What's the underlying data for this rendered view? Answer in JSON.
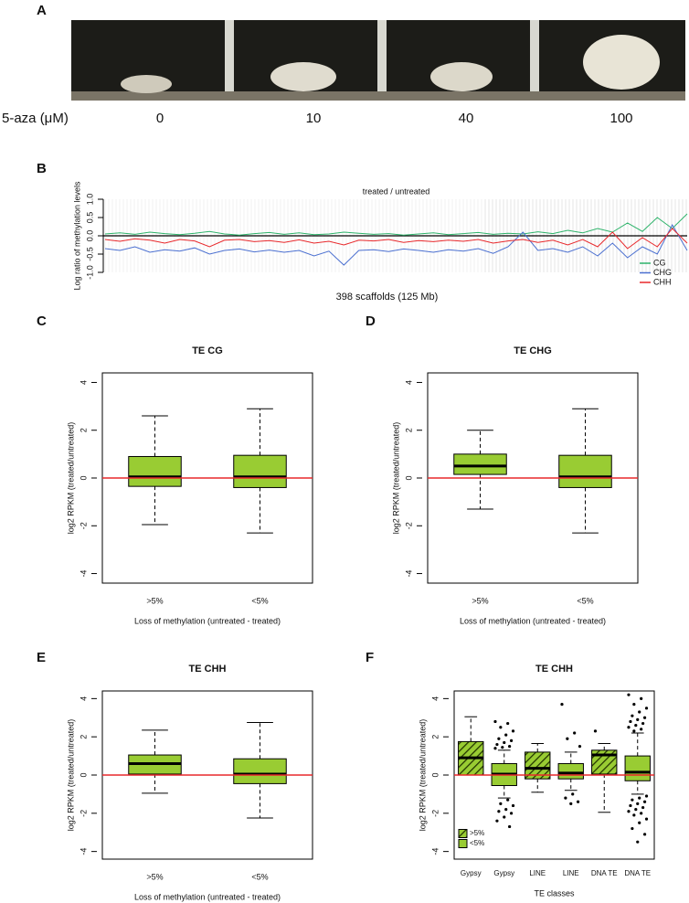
{
  "figure_a": {
    "panel": "A",
    "treatment_label": "5-aza (μM)",
    "doses": [
      0,
      10,
      40,
      100
    ]
  },
  "chart_data": [
    {
      "type": "line",
      "panel": "B",
      "title": "treated / untreated",
      "y_label": "Log ratio of methylation levels",
      "x_label": "398 scaffolds (125 Mb)",
      "ylim": [
        -1,
        1
      ],
      "yticks": [
        {
          "value": -1,
          "label": "-1.0"
        },
        {
          "value": -0.5,
          "label": "-0.5"
        },
        {
          "value": 0,
          "label": "0.0"
        },
        {
          "value": 0.5,
          "label": "0.5"
        },
        {
          "value": 1,
          "label": "1.0"
        }
      ],
      "hline": 0,
      "hline_color": "#000000",
      "legend": "bottom-right",
      "categories": [
        null,
        null,
        null,
        null,
        null,
        null,
        null,
        null,
        null,
        null,
        null,
        null,
        null,
        null,
        null,
        null,
        null,
        null,
        null,
        null,
        null,
        null,
        null,
        null,
        null,
        null,
        null,
        null,
        null,
        null,
        null,
        null,
        null,
        null,
        null,
        null,
        null,
        null,
        null,
        null
      ],
      "series": [
        {
          "name": "CG",
          "color": "#2db36a",
          "values": [
            0.05,
            0.08,
            0.04,
            0.1,
            0.06,
            0.03,
            0.07,
            0.12,
            0.05,
            0.02,
            0.06,
            0.09,
            0.04,
            0.08,
            0.03,
            0.05,
            0.1,
            0.07,
            0.04,
            0.06,
            0.02,
            0.05,
            0.08,
            0.03,
            0.06,
            0.09,
            0.04,
            0.07,
            0.05,
            0.11,
            0.06,
            0.15,
            0.08,
            0.2,
            0.1,
            0.35,
            0.12,
            0.5,
            0.2,
            0.6
          ]
        },
        {
          "name": "CHG",
          "color": "#4a6fd0",
          "values": [
            -0.35,
            -0.4,
            -0.3,
            -0.45,
            -0.38,
            -0.42,
            -0.33,
            -0.5,
            -0.4,
            -0.36,
            -0.44,
            -0.39,
            -0.45,
            -0.4,
            -0.55,
            -0.42,
            -0.8,
            -0.4,
            -0.38,
            -0.43,
            -0.36,
            -0.4,
            -0.45,
            -0.38,
            -0.42,
            -0.35,
            -0.48,
            -0.3,
            0.1,
            -0.4,
            -0.35,
            -0.45,
            -0.3,
            -0.55,
            -0.2,
            -0.6,
            -0.3,
            -0.5,
            0.3,
            -0.4
          ]
        },
        {
          "name": "CHH",
          "color": "#e8282b",
          "values": [
            -0.1,
            -0.15,
            -0.08,
            -0.12,
            -0.2,
            -0.1,
            -0.14,
            -0.3,
            -0.12,
            -0.1,
            -0.16,
            -0.13,
            -0.18,
            -0.11,
            -0.2,
            -0.15,
            -0.25,
            -0.12,
            -0.14,
            -0.1,
            -0.18,
            -0.13,
            -0.16,
            -0.12,
            -0.15,
            -0.1,
            -0.2,
            -0.14,
            -0.1,
            -0.18,
            -0.12,
            -0.25,
            -0.1,
            -0.3,
            0.1,
            -0.35,
            -0.05,
            -0.3,
            0.2,
            -0.2
          ]
        }
      ]
    },
    {
      "type": "box",
      "panel": "C",
      "title": "TE CG",
      "y_label": "log2 RPKM (treated/untreated)",
      "x_label": "Loss of methylation (untreated - treated)",
      "color": "#99cc33",
      "ylim": [
        -4.4,
        4.4
      ],
      "yticks": [
        -4,
        -2,
        0,
        2,
        4
      ],
      "hline": 0,
      "hline_color": "#e8282b",
      "categories": [
        ">5%",
        "<5%"
      ],
      "boxes": [
        {
          "low": -1.95,
          "q1": -0.35,
          "median": 0.05,
          "q3": 0.9,
          "high": 2.6
        },
        {
          "low": -2.3,
          "q1": -0.4,
          "median": 0.05,
          "q3": 0.95,
          "high": 2.9
        }
      ]
    },
    {
      "type": "box",
      "panel": "D",
      "title": "TE CHG",
      "y_label": "log2 RPKM (treated/untreated)",
      "x_label": "Loss of methylation (untreated - treated)",
      "color": "#99cc33",
      "ylim": [
        -4.4,
        4.4
      ],
      "yticks": [
        -4,
        -2,
        0,
        2,
        4
      ],
      "hline": 0,
      "hline_color": "#e8282b",
      "categories": [
        ">5%",
        "<5%"
      ],
      "boxes": [
        {
          "low": -1.3,
          "q1": 0.15,
          "median": 0.5,
          "q3": 1.0,
          "high": 2.0
        },
        {
          "low": -2.3,
          "q1": -0.4,
          "median": 0.05,
          "q3": 0.95,
          "high": 2.9
        }
      ]
    },
    {
      "type": "box",
      "panel": "E",
      "title": "TE CHH",
      "y_label": "log2 RPKM (treated/untreated)",
      "x_label": "Loss of methylation (untreated - treated)",
      "color": "#99cc33",
      "ylim": [
        -4.4,
        4.4
      ],
      "yticks": [
        -4,
        -2,
        0,
        2,
        4
      ],
      "hline": 0,
      "hline_color": "#e8282b",
      "categories": [
        ">5%",
        "<5%"
      ],
      "boxes": [
        {
          "low": -0.95,
          "q1": 0.05,
          "median": 0.6,
          "q3": 1.05,
          "high": 2.35
        },
        {
          "low": -2.25,
          "q1": -0.45,
          "median": 0.05,
          "q3": 0.85,
          "high": 2.75
        }
      ]
    },
    {
      "type": "box",
      "panel": "F",
      "title": "TE CHH",
      "y_label": "log2 RPKM (treated/untreated)",
      "x_label": "TE classes",
      "color": "#99cc33",
      "ylim": [
        -4.4,
        4.4
      ],
      "yticks": [
        -4,
        -2,
        0,
        2,
        4
      ],
      "hline": 0,
      "hline_color": "#e8282b",
      "legend_position": "bottom-left",
      "legend": [
        {
          "name": ">5%",
          "hatch": true
        },
        {
          "name": "<5%",
          "hatch": false
        }
      ],
      "groups": [
        0,
        1,
        0,
        1,
        0,
        1
      ],
      "categories": [
        "Gypsy",
        "Gypsy",
        "LINE",
        "LINE",
        "DNA TE",
        "DNA TE"
      ],
      "boxes": [
        {
          "low": 0.0,
          "q1": 0.0,
          "median": 0.9,
          "q3": 1.75,
          "high": 3.05
        },
        {
          "low": -1.2,
          "q1": -0.55,
          "median": 0.05,
          "q3": 0.6,
          "high": 1.3,
          "outliers": [
            2.8,
            2.7,
            2.5,
            2.3,
            2.1,
            1.9,
            1.8,
            1.7,
            1.6,
            1.5,
            1.45,
            1.4,
            -1.3,
            -1.5,
            -1.6,
            -1.8,
            -1.9,
            -2.0,
            -2.2,
            -2.4,
            -2.7
          ]
        },
        {
          "low": -0.9,
          "q1": -0.2,
          "median": 0.35,
          "q3": 1.2,
          "high": 1.65
        },
        {
          "low": -0.8,
          "q1": -0.2,
          "median": 0.1,
          "q3": 0.6,
          "high": 1.2,
          "outliers": [
            3.7,
            2.2,
            1.9,
            1.5,
            -1.0,
            -1.2,
            -1.4,
            -1.5
          ]
        },
        {
          "low": -1.95,
          "q1": 0.05,
          "median": 1.05,
          "q3": 1.3,
          "high": 1.65,
          "outliers": [
            2.3
          ]
        },
        {
          "low": -1.0,
          "q1": -0.3,
          "median": 0.15,
          "q3": 1.0,
          "high": 2.2,
          "outliers": [
            4.2,
            4.0,
            3.7,
            3.5,
            3.3,
            3.1,
            3.0,
            2.9,
            2.8,
            2.7,
            2.6,
            2.5,
            2.4,
            2.3,
            -1.1,
            -1.2,
            -1.3,
            -1.4,
            -1.5,
            -1.6,
            -1.7,
            -1.8,
            -1.9,
            -2.0,
            -2.1,
            -2.3,
            -2.5,
            -2.8,
            -3.1,
            -3.5
          ]
        }
      ]
    }
  ]
}
